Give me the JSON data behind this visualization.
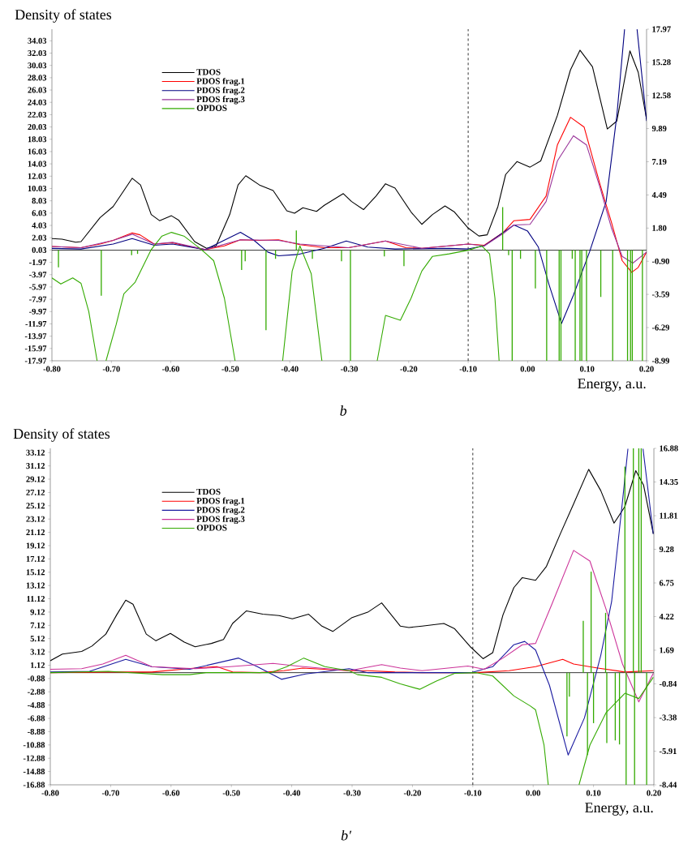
{
  "chart_data": [
    {
      "type": "line",
      "ylabel": "Density of states",
      "xlabel": "Energy, a.u.",
      "annotations": [
        "b"
      ],
      "legend": "top left",
      "xlim": [
        -0.8,
        0.2
      ],
      "xticks": [
        {
          "value": -0.8,
          "label": "-0.80"
        },
        {
          "value": -0.7,
          "label": "-0.70"
        },
        {
          "value": -0.6,
          "label": "-0.60"
        },
        {
          "value": -0.5,
          "label": "-0.50"
        },
        {
          "value": -0.4,
          "label": "-0.40"
        },
        {
          "value": -0.3,
          "label": "-0.30"
        },
        {
          "value": -0.2,
          "label": "-0.20"
        },
        {
          "value": -0.1,
          "label": "-0.10"
        },
        {
          "value": 0,
          "label": "0.00"
        },
        {
          "value": 0.1,
          "label": "0.10"
        },
        {
          "value": 0.2,
          "label": "0.20"
        }
      ],
      "ylim": [
        -17.97,
        35.92
      ],
      "yticks": [
        -17.97,
        -15.97,
        -13.97,
        -11.97,
        -9.97,
        -7.97,
        -5.97,
        -3.97,
        -1.97,
        0.03,
        2.03,
        4.03,
        6.03,
        8.03,
        10.03,
        12.03,
        14.03,
        16.03,
        18.03,
        20.03,
        22.03,
        24.03,
        26.03,
        28.03,
        30.03,
        32.03,
        34.03
      ],
      "y2lim": [
        -8.99,
        17.97
      ],
      "y2ticks": [
        -8.99,
        -6.29,
        -3.59,
        {
          "value": -0.9,
          "label": "-0.90"
        },
        {
          "value": 1.8,
          "label": "1.80"
        },
        4.49,
        7.19,
        9.89,
        12.58,
        15.28,
        17.97
      ],
      "ref_lines": [
        {
          "axis": "x",
          "value": -0.1,
          "line_style": "dashed",
          "color": "#000000"
        },
        {
          "axis": "y",
          "value": 0,
          "color": "#000000"
        }
      ],
      "series": [
        {
          "name": "TDOS",
          "color": "#000000",
          "x": [
            -0.8,
            -0.783,
            -0.76,
            -0.751,
            -0.719,
            -0.697,
            -0.665,
            -0.651,
            -0.633,
            -0.619,
            -0.599,
            -0.587,
            -0.56,
            -0.54,
            -0.524,
            -0.501,
            -0.487,
            -0.474,
            -0.451,
            -0.428,
            -0.405,
            -0.392,
            -0.378,
            -0.355,
            -0.342,
            -0.31,
            -0.296,
            -0.276,
            -0.255,
            -0.239,
            -0.223,
            -0.196,
            -0.178,
            -0.16,
            -0.139,
            -0.123,
            -0.1,
            -0.082,
            -0.068,
            -0.05,
            -0.037,
            -0.018,
            0.004,
            0.022,
            0.05,
            0.072,
            0.088,
            0.109,
            0.134,
            0.15,
            0.172,
            0.186,
            0.2
          ],
          "values": [
            1.9,
            1.8,
            1.3,
            1.4,
            5.3,
            7.1,
            11.7,
            10.6,
            5.8,
            4.8,
            5.6,
            4.9,
            1.4,
            0.3,
            0.7,
            5.8,
            10.6,
            12.1,
            10.6,
            9.7,
            6.4,
            6.0,
            6.9,
            6.3,
            7.3,
            9.2,
            7.9,
            6.6,
            8.8,
            10.8,
            10.1,
            6.2,
            4.2,
            5.8,
            7.2,
            6.2,
            3.6,
            2.3,
            2.5,
            7.1,
            12.3,
            14.4,
            13.5,
            14.5,
            21.9,
            29.3,
            32.5,
            29.8,
            19.7,
            21.0,
            32.4,
            28.9,
            21.3
          ]
        },
        {
          "name": "PDOS frag.1",
          "color": "#ff0000",
          "x": [
            -0.8,
            -0.751,
            -0.719,
            -0.697,
            -0.665,
            -0.652,
            -0.628,
            -0.597,
            -0.574,
            -0.542,
            -0.51,
            -0.483,
            -0.451,
            -0.419,
            -0.383,
            -0.342,
            -0.301,
            -0.239,
            -0.205,
            -0.178,
            -0.132,
            -0.1,
            -0.073,
            -0.041,
            -0.023,
            0.004,
            0.031,
            0.05,
            0.072,
            0.095,
            0.122,
            0.141,
            0.159,
            0.175,
            0.186,
            0.2
          ],
          "values": [
            0.6,
            0.4,
            1.0,
            1.6,
            2.8,
            2.5,
            1.0,
            1.2,
            0.7,
            0.1,
            0.7,
            1.7,
            1.6,
            1.7,
            0.9,
            0.4,
            0.4,
            1.5,
            0.4,
            0.3,
            0.7,
            1.0,
            0.8,
            2.9,
            4.8,
            5.0,
            8.8,
            17.1,
            21.6,
            20.0,
            10.6,
            4.5,
            -1.7,
            -3.6,
            -2.8,
            -0.3
          ]
        },
        {
          "name": "PDOS frag.2",
          "color": "#000080",
          "x": [
            -0.8,
            -0.751,
            -0.697,
            -0.665,
            -0.628,
            -0.597,
            -0.542,
            -0.483,
            -0.46,
            -0.437,
            -0.419,
            -0.387,
            -0.342,
            -0.305,
            -0.269,
            -0.223,
            -0.132,
            -0.1,
            -0.073,
            -0.041,
            -0.023,
            0.0,
            0.018,
            0.036,
            0.057,
            0.077,
            0.104,
            0.132,
            0.15,
            0.163,
            0.174,
            0.184,
            0.2
          ],
          "values": [
            0.3,
            0.2,
            1.0,
            1.9,
            0.8,
            1.0,
            0.1,
            2.9,
            1.6,
            -0.3,
            -0.9,
            -0.7,
            0.3,
            1.5,
            0.5,
            0.2,
            0.3,
            0.2,
            0.7,
            2.9,
            4.1,
            3.1,
            0.5,
            -5.6,
            -11.9,
            -7.3,
            -0.3,
            7.9,
            21.9,
            35.9,
            null,
            35.9,
            21.0
          ]
        },
        {
          "name": "PDOS frag.3",
          "color": "#993399",
          "x": [
            -0.8,
            -0.751,
            -0.697,
            -0.665,
            -0.628,
            -0.597,
            -0.542,
            -0.483,
            -0.419,
            -0.383,
            -0.301,
            -0.239,
            -0.178,
            -0.1,
            -0.073,
            -0.041,
            -0.023,
            0.004,
            0.031,
            0.05,
            0.077,
            0.099,
            0.122,
            0.141,
            0.159,
            0.177,
            0.2
          ],
          "values": [
            0.6,
            0.4,
            1.6,
            2.6,
            1.0,
            1.3,
            0.1,
            1.7,
            1.6,
            1.0,
            0.4,
            1.5,
            0.3,
            1.0,
            0.7,
            2.7,
            4.1,
            4.2,
            7.9,
            14.5,
            18.6,
            17.1,
            10.1,
            3.6,
            -1.0,
            -2.1,
            -0.3
          ]
        },
        {
          "name": "OPDOS",
          "color": "#33aa00",
          "axis": "y2",
          "x": [
            -0.8,
            -0.785,
            -0.765,
            -0.751,
            -0.738,
            -0.724,
            -0.716,
            -0.709,
            -0.692,
            -0.679,
            -0.66,
            -0.633,
            -0.615,
            -0.599,
            -0.578,
            -0.551,
            -0.528,
            -0.51,
            -0.492,
            -0.45,
            -0.412,
            -0.396,
            -0.383,
            -0.364,
            -0.346,
            -0.3,
            -0.253,
            -0.239,
            -0.214,
            -0.196,
            -0.178,
            -0.16,
            -0.132,
            -0.1,
            -0.077,
            -0.064,
            -0.055,
            -0.048
          ],
          "values": [
            -2.25,
            -2.75,
            -2.25,
            -2.7,
            -5.0,
            -8.99,
            null,
            -8.99,
            -6.05,
            -3.55,
            -2.6,
            0.05,
            1.15,
            1.45,
            1.15,
            0.15,
            -0.85,
            -3.9,
            -8.99,
            null,
            -8.99,
            -1.7,
            0.35,
            -1.9,
            -8.99,
            null,
            -8.99,
            -5.3,
            -5.7,
            -3.9,
            -1.7,
            -0.5,
            -0.3,
            0.0,
            0.35,
            -0.3,
            -3.9,
            -8.99
          ]
        },
        {
          "type": "bar",
          "color": "#33aa00",
          "axis": "y2",
          "x": [
            -0.789,
            -0.717,
            -0.666,
            -0.656,
            -0.481,
            -0.475,
            -0.44,
            -0.424,
            -0.389,
            -0.362,
            -0.313,
            -0.298,
            -0.241,
            -0.208,
            -0.042,
            -0.032,
            -0.026,
            -0.012,
            0.013,
            0.032,
            0.053,
            0.056,
            0.075,
            0.08,
            0.088,
            0.091,
            0.099,
            0.123,
            0.143,
            0.168,
            0.173,
            0.176,
            0.193
          ],
          "values": [
            -1.4,
            -3.7,
            -0.4,
            -0.3,
            -1.6,
            -0.9,
            -6.5,
            -0.7,
            1.6,
            -0.7,
            -0.9,
            -8.99,
            -0.5,
            -1.3,
            3.5,
            -0.4,
            -8.99,
            -0.7,
            -3.1,
            -8.99,
            -8.99,
            -8.99,
            -0.7,
            -8.99,
            -8.99,
            -8.99,
            -8.99,
            -3.8,
            -8.99,
            -8.99,
            -8.99,
            -8.99,
            -8.99
          ]
        }
      ]
    },
    {
      "type": "line",
      "ylabel": "Density of states",
      "xlabel": "Energy, a.u.",
      "annotations": [
        "b′"
      ],
      "legend": "top left",
      "xlim": [
        -0.8,
        0.2
      ],
      "xticks": [
        {
          "value": -0.8,
          "label": "-0.80"
        },
        {
          "value": -0.7,
          "label": "-0.70"
        },
        {
          "value": -0.6,
          "label": "-0.60"
        },
        {
          "value": -0.5,
          "label": "-0.50"
        },
        {
          "value": -0.4,
          "label": "-0.40"
        },
        {
          "value": -0.3,
          "label": "-0.30"
        },
        {
          "value": -0.2,
          "label": "-0.20"
        },
        {
          "value": -0.1,
          "label": "-0.10"
        },
        {
          "value": 0,
          "label": "0.00"
        },
        {
          "value": 0.1,
          "label": "0.10"
        },
        {
          "value": 0.2,
          "label": "0.20"
        }
      ],
      "ylim": [
        -16.88,
        33.76
      ],
      "yticks": [
        -16.88,
        -14.88,
        -12.88,
        -10.88,
        -8.88,
        -6.88,
        -4.88,
        -2.88,
        -0.88,
        1.12,
        3.12,
        5.12,
        7.12,
        9.12,
        11.12,
        13.12,
        15.12,
        17.12,
        19.12,
        21.12,
        23.12,
        25.12,
        27.12,
        29.12,
        31.12,
        33.12
      ],
      "y2lim": [
        -8.44,
        16.88
      ],
      "y2ticks": [
        -8.44,
        -5.91,
        -3.38,
        -0.84,
        1.69,
        4.22,
        6.75,
        9.28,
        11.81,
        14.35,
        16.88
      ],
      "ref_lines": [
        {
          "axis": "x",
          "value": -0.1,
          "line_style": "dashed",
          "color": "#000000"
        },
        {
          "axis": "y",
          "value": 0,
          "color": "#000000"
        }
      ],
      "series": [
        {
          "name": "TDOS",
          "color": "#000000",
          "x": [
            -0.8,
            -0.78,
            -0.748,
            -0.731,
            -0.708,
            -0.69,
            -0.675,
            -0.663,
            -0.641,
            -0.625,
            -0.601,
            -0.578,
            -0.56,
            -0.533,
            -0.513,
            -0.498,
            -0.475,
            -0.448,
            -0.421,
            -0.399,
            -0.372,
            -0.35,
            -0.332,
            -0.3,
            -0.274,
            -0.251,
            -0.22,
            -0.206,
            -0.184,
            -0.148,
            -0.13,
            -0.103,
            -0.083,
            -0.067,
            -0.05,
            -0.032,
            -0.018,
            0.004,
            0.022,
            0.045,
            0.067,
            0.092,
            0.112,
            0.134,
            0.152,
            0.17,
            0.183,
            0.199
          ],
          "values": [
            1.8,
            2.8,
            3.2,
            4.0,
            5.8,
            8.7,
            10.9,
            10.3,
            5.8,
            4.8,
            5.9,
            4.6,
            3.9,
            4.4,
            5.0,
            7.4,
            9.3,
            8.8,
            8.6,
            8.1,
            8.8,
            7.0,
            6.2,
            8.3,
            9.1,
            10.5,
            7.0,
            6.8,
            7.0,
            7.4,
            6.6,
            3.8,
            2.1,
            3.0,
            8.7,
            12.8,
            14.3,
            13.9,
            16.0,
            20.9,
            25.4,
            30.6,
            27.4,
            22.5,
            25.0,
            30.4,
            28.2,
            20.9
          ]
        },
        {
          "name": "PDOS frag.1",
          "color": "#ff0000",
          "x": [
            -0.8,
            -0.704,
            -0.632,
            -0.56,
            -0.524,
            -0.498,
            -0.453,
            -0.413,
            -0.382,
            -0.305,
            -0.274,
            -0.229,
            -0.184,
            -0.095,
            -0.04,
            0.004,
            0.049,
            0.067,
            0.107,
            0.152,
            0.199
          ],
          "values": [
            0.0,
            0.1,
            0.1,
            0.7,
            0.9,
            0.1,
            0.0,
            0.3,
            0.7,
            0.3,
            0.3,
            0.1,
            0.0,
            0.0,
            0.3,
            0.9,
            2.0,
            1.3,
            0.7,
            0.1,
            0.3
          ]
        },
        {
          "name": "PDOS frag.2",
          "color": "#1a1aa0",
          "x": [
            -0.8,
            -0.735,
            -0.675,
            -0.632,
            -0.569,
            -0.488,
            -0.457,
            -0.417,
            -0.377,
            -0.305,
            -0.274,
            -0.184,
            -0.103,
            -0.067,
            -0.032,
            -0.014,
            0.004,
            0.027,
            0.058,
            0.085,
            0.112,
            0.13,
            0.148,
            0.157,
            0.17,
            0.182,
            0.199
          ],
          "values": [
            0.1,
            0.2,
            2.0,
            0.9,
            0.5,
            2.2,
            0.9,
            -1.0,
            -0.2,
            0.6,
            0.0,
            0.0,
            0.0,
            0.9,
            4.2,
            4.7,
            3.4,
            -1.9,
            -12.4,
            -6.8,
            2.6,
            10.7,
            25.8,
            33.7,
            null,
            33.7,
            20.9
          ]
        },
        {
          "name": "PDOS frag.3",
          "color": "#cc3399",
          "x": [
            -0.8,
            -0.748,
            -0.713,
            -0.675,
            -0.632,
            -0.56,
            -0.502,
            -0.431,
            -0.391,
            -0.305,
            -0.251,
            -0.22,
            -0.184,
            -0.108,
            -0.081,
            -0.05,
            -0.018,
            0.004,
            0.031,
            0.067,
            0.094,
            0.121,
            0.148,
            0.175,
            0.199
          ],
          "values": [
            0.5,
            0.6,
            1.3,
            2.6,
            0.9,
            0.6,
            0.9,
            1.4,
            1.0,
            0.3,
            1.2,
            0.7,
            0.3,
            1.0,
            0.5,
            2.2,
            4.2,
            4.4,
            10.3,
            18.4,
            16.8,
            9.5,
            1.3,
            -4.4,
            -0.1
          ]
        },
        {
          "name": "OPDOS",
          "color": "#33aa00",
          "axis": "y2",
          "x": [
            -0.8,
            -0.704,
            -0.614,
            -0.569,
            -0.542,
            -0.435,
            -0.408,
            -0.38,
            -0.345,
            -0.305,
            -0.291,
            -0.251,
            -0.22,
            -0.188,
            -0.161,
            -0.13,
            -0.094,
            -0.067,
            -0.032,
            -0.005,
            0.004,
            0.018,
            0.025,
            0.05,
            0.076,
            0.094,
            0.121,
            0.152,
            0.175,
            0.199
          ],
          "values": [
            0.0,
            0.1,
            -0.15,
            -0.15,
            0.0,
            0.0,
            0.45,
            1.1,
            0.45,
            0.15,
            -0.15,
            -0.35,
            -0.85,
            -1.25,
            -0.65,
            -0.05,
            0.0,
            -0.25,
            -1.75,
            -2.5,
            -2.8,
            -5.45,
            -8.44,
            null,
            -8.44,
            -5.45,
            -3.0,
            -1.55,
            -1.95,
            -0.35
          ]
        },
        {
          "type": "bar",
          "color": "#33aa00",
          "axis": "y2",
          "x": [
            0.056,
            0.06,
            0.083,
            0.09,
            0.096,
            0.1,
            0.12,
            0.122,
            0.136,
            0.143,
            0.152,
            0.154,
            0.166,
            0.168,
            0.175,
            0.179,
            0.188
          ],
          "values": [
            -4.8,
            -1.8,
            3.9,
            -6.2,
            7.6,
            -3.8,
            4.5,
            -5.3,
            -5.1,
            -5.4,
            15.5,
            -8.44,
            16.88,
            -8.44,
            16.88,
            16.88,
            -8.44
          ]
        }
      ]
    }
  ]
}
